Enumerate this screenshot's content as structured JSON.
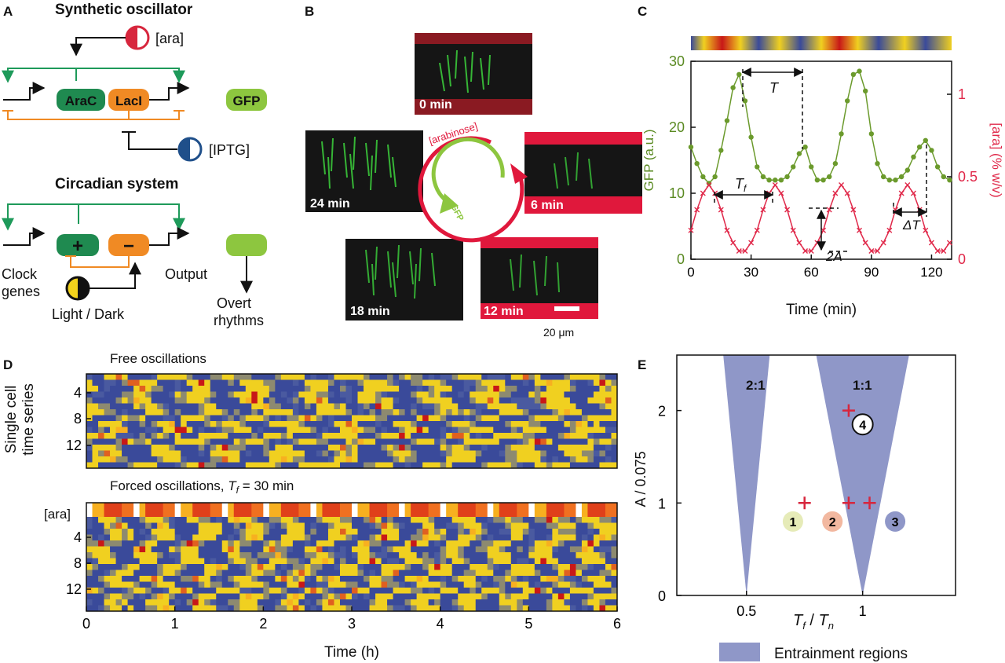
{
  "panels": {
    "a": "A",
    "b": "B",
    "c": "C",
    "d": "D",
    "e": "E"
  },
  "a": {
    "synth_title": "Synthetic oscillator",
    "ara": "[ara]",
    "arac": "AraC",
    "laci": "LacI",
    "gfp": "GFP",
    "iptg": "[IPTG]",
    "circ_title": "Circadian system",
    "plus": "+",
    "minus": "−",
    "clock1": "Clock",
    "clock2": "genes",
    "output": "Output",
    "lightdark": "Light / Dark",
    "overt1": "Overt",
    "overt2": "rhythms"
  },
  "b": {
    "frames": [
      "0 min",
      "6 min",
      "12 min",
      "18 min",
      "24 min"
    ],
    "arabinose": "[arabinose]",
    "gfp": "GFP",
    "scale": "20 μm"
  },
  "c": {
    "ylabel_left": "GFP (a.u.)",
    "ylabel_right": "[ara] (% w/v)",
    "xlabel": "Time (min)",
    "xticks": [
      "0",
      "30",
      "60",
      "90",
      "120"
    ],
    "yticks_left": [
      "0",
      "10",
      "20",
      "30"
    ],
    "yticks_right": [
      "0",
      "0.5",
      "1"
    ],
    "T": "T",
    "Tf": "T",
    "Tf_sub": "f",
    "dT": "ΔT",
    "twoA": "2A"
  },
  "d": {
    "title_free": "Free oscillations",
    "title_forced": "Forced oscillations, ",
    "title_forced_T": "T",
    "title_forced_sub": "f",
    "title_forced_val": " = 30 min",
    "ylabel1": "Single cell",
    "ylabel2": "time series",
    "ara": "[ara]",
    "yticks_top": [
      "4",
      "8",
      "12"
    ],
    "yticks_bot": [
      "4",
      "8",
      "12"
    ],
    "xticks": [
      "0",
      "1",
      "2",
      "3",
      "4",
      "5",
      "6"
    ],
    "xlabel": "Time (h)"
  },
  "e": {
    "ylabel": "A / 0.075",
    "xlabel_T": "T",
    "xlabel_f": "f",
    "xlabel_slash": " / ",
    "xlabel_n": "n",
    "yticks": [
      "0",
      "1",
      "2"
    ],
    "xticks": [
      "0.5",
      "1"
    ],
    "region1": "2:1",
    "region2": "1:1",
    "pts": [
      "1",
      "2",
      "3",
      "4"
    ],
    "legend": "Entrainment regions"
  },
  "chart_data": [
    {
      "type": "line",
      "panel": "C",
      "xlabel": "Time (min)",
      "ylabel": "GFP (a.u.)",
      "y2label": "[ara] (% w/v)",
      "xlim": [
        0,
        130
      ],
      "ylim": [
        0,
        30
      ],
      "y2lim": [
        0,
        1.2
      ],
      "series": [
        {
          "color": "#6b9a2c",
          "x": [
            0,
            3,
            6,
            9,
            12,
            15,
            18,
            21,
            24,
            27,
            30,
            33,
            36,
            39,
            42,
            45,
            48,
            51,
            54,
            57,
            60,
            63,
            66,
            69,
            72,
            75,
            78,
            81,
            84,
            87,
            90,
            93,
            96,
            99,
            102,
            105,
            108,
            111,
            114,
            117,
            120,
            123,
            126,
            129
          ],
          "y": [
            17,
            14.5,
            12.5,
            11.5,
            12.5,
            16.5,
            21,
            26,
            28,
            24,
            18.5,
            14,
            12.5,
            12,
            12,
            12,
            12.5,
            14,
            16,
            17,
            14,
            12,
            12,
            12.5,
            14.5,
            19,
            24,
            28,
            28.5,
            25.5,
            19,
            14.5,
            12.5,
            12,
            12,
            12.5,
            13.5,
            15.5,
            17,
            18,
            16.5,
            14,
            12.5,
            12
          ]
        },
        {
          "color": "#e0294a",
          "x": [
            0,
            3,
            6,
            9,
            12,
            15,
            18,
            21,
            24,
            27,
            30,
            33,
            36,
            39,
            42,
            45,
            48,
            51,
            54,
            57,
            60,
            63,
            66,
            69,
            72,
            75,
            78,
            81,
            84,
            87,
            90,
            93,
            96,
            99,
            102,
            105,
            108,
            111,
            114,
            117,
            120,
            123,
            126,
            129
          ],
          "y": [
            0.175,
            0.3,
            0.4,
            0.45,
            0.4,
            0.3,
            0.175,
            0.1,
            0.05,
            0.05,
            0.1,
            0.175,
            0.3,
            0.4,
            0.45,
            0.4,
            0.3,
            0.175,
            0.1,
            0.05,
            0.05,
            0.1,
            0.175,
            0.3,
            0.4,
            0.45,
            0.4,
            0.3,
            0.175,
            0.1,
            0.05,
            0.05,
            0.1,
            0.175,
            0.3,
            0.4,
            0.45,
            0.4,
            0.3,
            0.175,
            0.1,
            0.05,
            0.05,
            0.1
          ]
        }
      ]
    },
    {
      "type": "area",
      "panel": "E",
      "xlabel": "Tf / Tn",
      "ylabel": "A / 0.075",
      "xlim": [
        0.2,
        1.4
      ],
      "ylim": [
        0,
        2.6
      ],
      "regions": [
        {
          "label": "2:1",
          "apex": [
            0.5,
            0
          ],
          "top": [
            0.4,
            0.6
          ]
        },
        {
          "label": "1:1",
          "apex": [
            1.0,
            0
          ],
          "top": [
            0.8,
            1.2
          ]
        }
      ],
      "forcing_points": [
        {
          "x": 0.75,
          "y": 1
        },
        {
          "x": 0.94,
          "y": 1
        },
        {
          "x": 1.03,
          "y": 1
        },
        {
          "x": 0.94,
          "y": 2
        }
      ],
      "labeled_points": [
        {
          "label": "1",
          "x": 0.7,
          "y": 0.8,
          "color": "#e6ebb8"
        },
        {
          "label": "2",
          "x": 0.87,
          "y": 0.8,
          "color": "#f2b8a0"
        },
        {
          "label": "3",
          "x": 1.14,
          "y": 0.8,
          "color": "#8f97c8"
        },
        {
          "label": "4",
          "x": 1.0,
          "y": 1.85,
          "color": "#ffffff"
        }
      ],
      "colors": {
        "region": "#8f97c8",
        "cross": "#d7263d"
      }
    }
  ]
}
